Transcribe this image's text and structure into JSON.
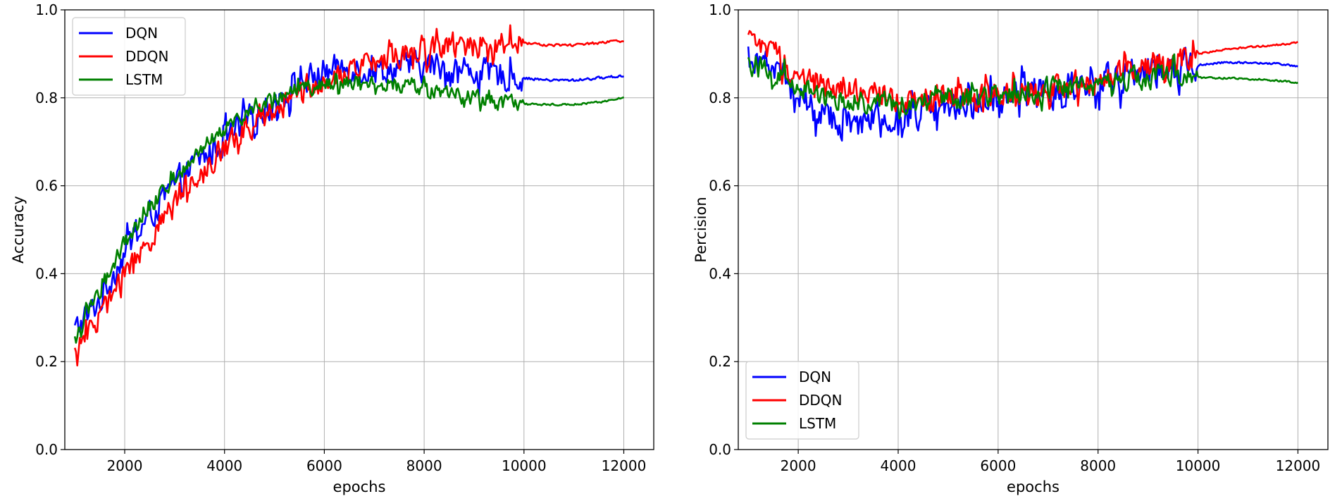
{
  "chart_data": [
    {
      "type": "line",
      "xlabel": "epochs",
      "ylabel": "Accuracy",
      "xlim": [
        800,
        12600
      ],
      "ylim": [
        0.0,
        1.0
      ],
      "xticks": [
        2000,
        4000,
        6000,
        8000,
        10000,
        12000
      ],
      "yticks": [
        0.0,
        0.2,
        0.4,
        0.6,
        0.8,
        1.0
      ],
      "xtick_labels": [
        "2000",
        "4000",
        "6000",
        "8000",
        "10000",
        "12000"
      ],
      "ytick_labels": [
        "0.0",
        "0.2",
        "0.4",
        "0.6",
        "0.8",
        "1.0"
      ],
      "grid": true,
      "legend_position": "top-left",
      "series": [
        {
          "name": "DQN",
          "color": "#0000ff",
          "x": [
            1000,
            1500,
            2000,
            2500,
            3000,
            3500,
            4000,
            4500,
            5000,
            5500,
            6000,
            6500,
            7000,
            7500,
            8000,
            8500,
            9000,
            9500,
            10000,
            10500,
            11000,
            11500,
            12000
          ],
          "y": [
            0.27,
            0.34,
            0.45,
            0.53,
            0.6,
            0.66,
            0.7,
            0.75,
            0.79,
            0.83,
            0.86,
            0.87,
            0.86,
            0.87,
            0.87,
            0.87,
            0.86,
            0.85,
            0.845,
            0.84,
            0.84,
            0.845,
            0.85
          ],
          "noise": 0.045,
          "noise_end": 10000,
          "smooth_noise": 0.004
        },
        {
          "name": "DDQN",
          "color": "#ff0000",
          "x": [
            1000,
            1500,
            2000,
            2500,
            3000,
            3500,
            4000,
            4500,
            5000,
            5500,
            6000,
            6500,
            7000,
            7500,
            8000,
            8500,
            9000,
            9500,
            10000,
            10500,
            11000,
            11500,
            12000
          ],
          "y": [
            0.22,
            0.3,
            0.4,
            0.48,
            0.56,
            0.63,
            0.69,
            0.73,
            0.77,
            0.81,
            0.84,
            0.86,
            0.88,
            0.9,
            0.91,
            0.92,
            0.92,
            0.925,
            0.925,
            0.92,
            0.92,
            0.925,
            0.93
          ],
          "noise": 0.04,
          "noise_end": 10000,
          "smooth_noise": 0.004
        },
        {
          "name": "LSTM",
          "color": "#008000",
          "x": [
            1000,
            1500,
            2000,
            2500,
            3000,
            3500,
            4000,
            4500,
            5000,
            5500,
            6000,
            6500,
            7000,
            7500,
            8000,
            8500,
            9000,
            9500,
            10000,
            10500,
            11000,
            11500,
            12000
          ],
          "y": [
            0.25,
            0.36,
            0.47,
            0.55,
            0.62,
            0.68,
            0.73,
            0.77,
            0.8,
            0.82,
            0.83,
            0.835,
            0.835,
            0.83,
            0.82,
            0.81,
            0.8,
            0.79,
            0.785,
            0.785,
            0.785,
            0.79,
            0.8
          ],
          "noise": 0.025,
          "noise_end": 10000,
          "smooth_noise": 0.003
        }
      ]
    },
    {
      "type": "line",
      "xlabel": "epochs",
      "ylabel": "Percision",
      "xlim": [
        800,
        12600
      ],
      "ylim": [
        0.0,
        1.0
      ],
      "xticks": [
        2000,
        4000,
        6000,
        8000,
        10000,
        12000
      ],
      "yticks": [
        0.0,
        0.2,
        0.4,
        0.6,
        0.8,
        1.0
      ],
      "xtick_labels": [
        "2000",
        "4000",
        "6000",
        "8000",
        "10000",
        "12000"
      ],
      "ytick_labels": [
        "0.0",
        "0.2",
        "0.4",
        "0.6",
        "0.8",
        "1.0"
      ],
      "grid": true,
      "legend_position": "bottom-left",
      "series": [
        {
          "name": "DQN",
          "color": "#0000ff",
          "x": [
            1000,
            1500,
            2000,
            2500,
            3000,
            3500,
            4000,
            4500,
            5000,
            5500,
            6000,
            6500,
            7000,
            7500,
            8000,
            8500,
            9000,
            9500,
            10000,
            10500,
            11000,
            11500,
            12000
          ],
          "y": [
            0.9,
            0.88,
            0.8,
            0.76,
            0.74,
            0.75,
            0.76,
            0.77,
            0.78,
            0.79,
            0.8,
            0.81,
            0.82,
            0.83,
            0.84,
            0.85,
            0.86,
            0.865,
            0.875,
            0.88,
            0.88,
            0.878,
            0.872
          ],
          "noise": 0.05,
          "noise_end": 10000,
          "smooth_noise": 0.003
        },
        {
          "name": "DDQN",
          "color": "#ff0000",
          "x": [
            1000,
            1500,
            2000,
            2500,
            3000,
            3500,
            4000,
            4500,
            5000,
            5500,
            6000,
            6500,
            7000,
            7500,
            8000,
            8500,
            9000,
            9500,
            10000,
            10500,
            11000,
            11500,
            12000
          ],
          "y": [
            0.93,
            0.9,
            0.85,
            0.83,
            0.82,
            0.81,
            0.8,
            0.8,
            0.8,
            0.8,
            0.81,
            0.81,
            0.82,
            0.83,
            0.84,
            0.86,
            0.87,
            0.88,
            0.9,
            0.91,
            0.915,
            0.92,
            0.925
          ],
          "noise": 0.04,
          "noise_end": 10000,
          "smooth_noise": 0.003
        },
        {
          "name": "LSTM",
          "color": "#008000",
          "x": [
            1000,
            1500,
            2000,
            2500,
            3000,
            3500,
            4000,
            4500,
            5000,
            5500,
            6000,
            6500,
            7000,
            7500,
            8000,
            8500,
            9000,
            9500,
            10000,
            10500,
            11000,
            11500,
            12000
          ],
          "y": [
            0.88,
            0.86,
            0.82,
            0.8,
            0.79,
            0.79,
            0.79,
            0.79,
            0.8,
            0.8,
            0.8,
            0.81,
            0.82,
            0.82,
            0.83,
            0.84,
            0.845,
            0.85,
            0.845,
            0.845,
            0.843,
            0.84,
            0.835
          ],
          "noise": 0.035,
          "noise_end": 10000,
          "smooth_noise": 0.003
        }
      ]
    }
  ]
}
